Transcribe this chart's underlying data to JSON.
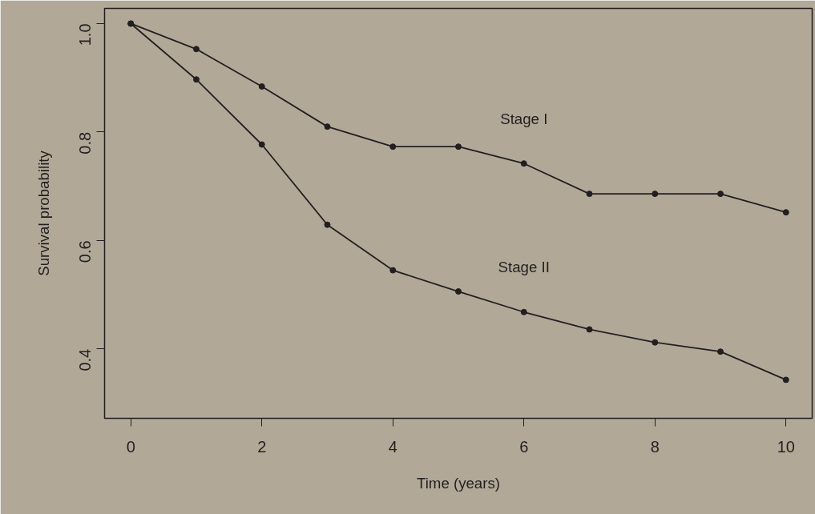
{
  "chart_data": {
    "type": "line",
    "xlabel": "Time (years)",
    "ylabel": "Survival probability",
    "x": [
      0,
      1,
      2,
      3,
      4,
      5,
      6,
      7,
      8,
      9,
      10
    ],
    "series": [
      {
        "name": "Stage I",
        "color": "#231f20",
        "values": [
          1.0,
          0.953,
          0.884,
          0.81,
          0.773,
          0.773,
          0.742,
          0.686,
          0.686,
          0.686,
          0.652
        ]
      },
      {
        "name": "Stage II",
        "color": "#231f20",
        "values": [
          1.0,
          0.897,
          0.777,
          0.629,
          0.545,
          0.506,
          0.468,
          0.436,
          0.412,
          0.395,
          0.343
        ]
      }
    ],
    "xlim": [
      -0.4,
      10.4
    ],
    "ylim": [
      0.272,
      1.028
    ],
    "xticks": [
      0,
      2,
      4,
      6,
      8,
      10
    ],
    "yticks": [
      {
        "value": 0.4,
        "label": "0.4"
      },
      {
        "value": 0.6,
        "label": "0.6"
      },
      {
        "value": 0.8,
        "label": "0.8"
      },
      {
        "value": 1.0,
        "label": "1.0"
      }
    ],
    "grid": false,
    "legend": false,
    "marker": "circle",
    "line_style": "solid"
  }
}
